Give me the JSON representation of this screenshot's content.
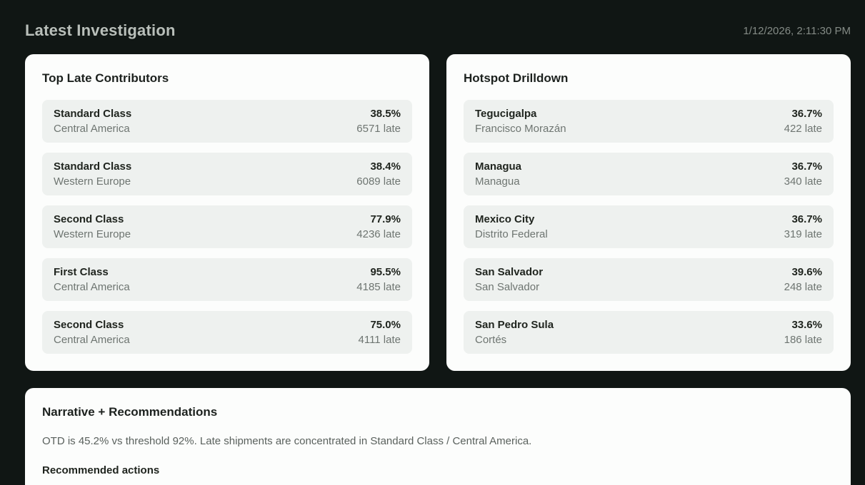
{
  "header": {
    "title": "Latest Investigation",
    "timestamp": "1/12/2026, 2:11:30 PM"
  },
  "contributors": {
    "title": "Top Late Contributors",
    "rows": [
      {
        "name": "Standard Class",
        "sub": "Central America",
        "pct": "38.5%",
        "count": "6571 late"
      },
      {
        "name": "Standard Class",
        "sub": "Western Europe",
        "pct": "38.4%",
        "count": "6089 late"
      },
      {
        "name": "Second Class",
        "sub": "Western Europe",
        "pct": "77.9%",
        "count": "4236 late"
      },
      {
        "name": "First Class",
        "sub": "Central America",
        "pct": "95.5%",
        "count": "4185 late"
      },
      {
        "name": "Second Class",
        "sub": "Central America",
        "pct": "75.0%",
        "count": "4111 late"
      }
    ]
  },
  "hotspots": {
    "title": "Hotspot Drilldown",
    "rows": [
      {
        "name": "Tegucigalpa",
        "sub": "Francisco Morazán",
        "pct": "36.7%",
        "count": "422 late"
      },
      {
        "name": "Managua",
        "sub": "Managua",
        "pct": "36.7%",
        "count": "340 late"
      },
      {
        "name": "Mexico City",
        "sub": "Distrito Federal",
        "pct": "36.7%",
        "count": "319 late"
      },
      {
        "name": "San Salvador",
        "sub": "San Salvador",
        "pct": "39.6%",
        "count": "248 late"
      },
      {
        "name": "San Pedro Sula",
        "sub": "Cortés",
        "pct": "33.6%",
        "count": "186 late"
      }
    ]
  },
  "narrative": {
    "title": "Narrative + Recommendations",
    "summary": "OTD is 45.2% vs threshold 92%. Late shipments are concentrated in Standard Class / Central America.",
    "actions_title": "Recommended actions"
  },
  "colors": {
    "background": "#101614",
    "card_background": "#fcfdfc",
    "row_background": "#eef1ef",
    "primary_text": "#20251f",
    "secondary_text": "#6e7571",
    "header_text": "#b9bfba"
  }
}
